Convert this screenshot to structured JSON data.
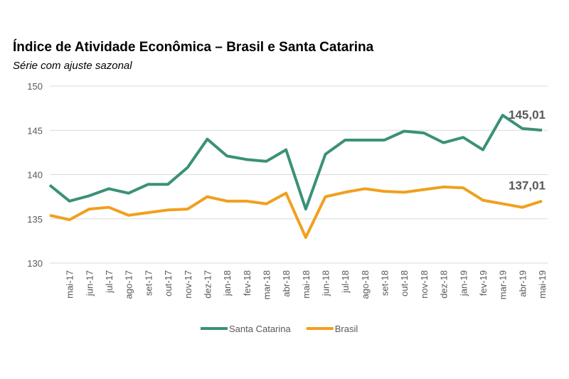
{
  "chart_data": {
    "type": "line",
    "title": "Índice de Atividade Econômica – Brasil e Santa Catarina",
    "subtitle": "Série com ajuste sazonal",
    "categories": [
      null,
      "mai-17",
      "jun-17",
      "jul-17",
      "ago-17",
      "set-17",
      "out-17",
      "nov-17",
      "dez-17",
      "jan-18",
      "fev-18",
      "mar-18",
      "abr-18",
      "mai-18",
      "jun-18",
      "jul-18",
      "ago-18",
      "set-18",
      "out-18",
      "nov-18",
      "dez-18",
      "jan-19",
      "fev-19",
      "mar-19",
      "abr-19",
      "mai-19"
    ],
    "series": [
      {
        "name": "Santa Catarina",
        "color": "#3a9178",
        "values": [
          138.8,
          137.0,
          137.6,
          138.4,
          137.9,
          138.9,
          138.9,
          140.8,
          144.0,
          142.1,
          141.7,
          141.5,
          142.8,
          136.1,
          142.3,
          143.9,
          143.9,
          143.9,
          144.9,
          144.7,
          143.6,
          144.2,
          142.8,
          146.7,
          145.2,
          145.01
        ],
        "value_labels": [
          null,
          null,
          null,
          null,
          null,
          null,
          null,
          null,
          null,
          null,
          null,
          null,
          null,
          null,
          null,
          null,
          null,
          null,
          null,
          null,
          null,
          null,
          null,
          null,
          null,
          "145,01"
        ]
      },
      {
        "name": "Brasil",
        "color": "#f0a01e",
        "values": [
          135.4,
          134.9,
          136.1,
          136.3,
          135.4,
          135.7,
          136.0,
          136.1,
          137.5,
          137.0,
          137.0,
          136.7,
          137.9,
          132.9,
          137.5,
          138.0,
          138.4,
          138.1,
          138.0,
          138.3,
          138.6,
          138.5,
          137.1,
          136.7,
          136.3,
          137.01
        ],
        "value_labels": [
          null,
          null,
          null,
          null,
          null,
          null,
          null,
          null,
          null,
          null,
          null,
          null,
          null,
          null,
          null,
          null,
          null,
          null,
          null,
          null,
          null,
          null,
          null,
          null,
          null,
          "137,01"
        ]
      }
    ],
    "ylim": [
      130,
      150
    ],
    "yticks": [
      130,
      135,
      140,
      145,
      150
    ],
    "grid": true,
    "legend": "bottom"
  }
}
